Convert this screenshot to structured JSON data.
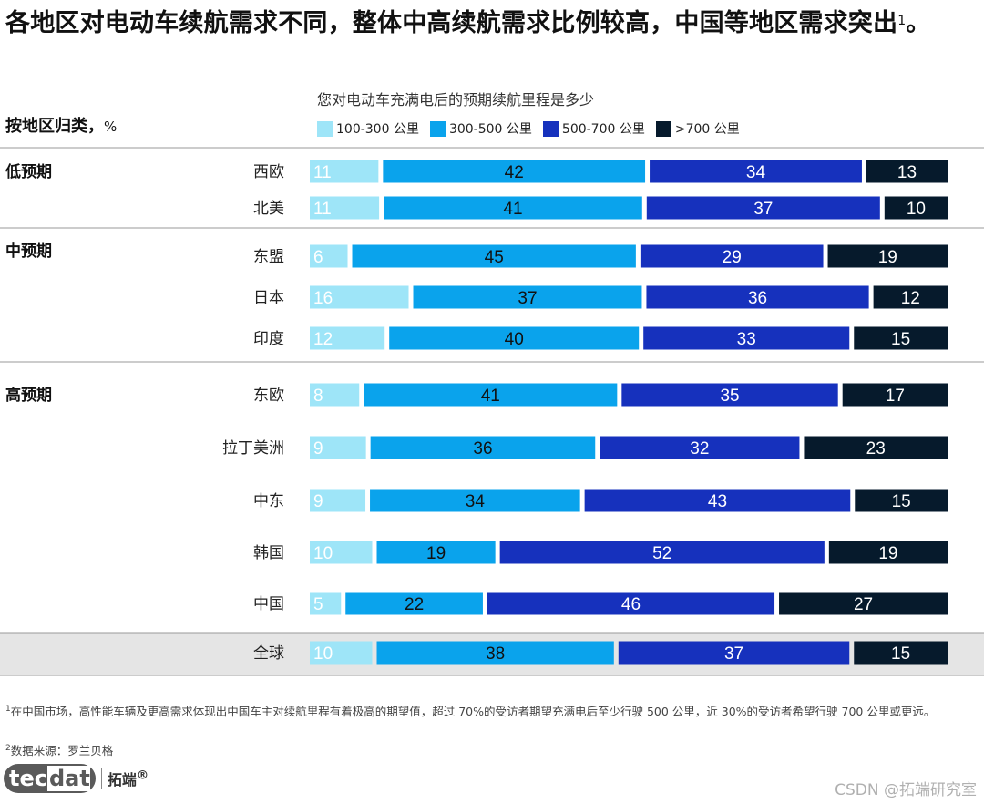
{
  "title": "各地区对电动车续航需求不同，整体中高续航需求比例较高，中国等地区需求突出",
  "title_sup": "1",
  "title_end": "。",
  "subtitle": "按地区归类，",
  "subtitle_unit": "%",
  "question": "您对电动车充满电后的预期续航里程是多少",
  "footnote1_sup": "1",
  "footnote1": "在中国市场，高性能车辆及更高需求体现出中国车主对续航里程有着极高的期望值，超过 70%的受访者期望充满电后至少行驶 500 公里，近 30%的受访者希望行驶 700 公里或更远。",
  "footnote2_sup": "2",
  "footnote2": "数据来源：罗兰贝格",
  "brand": {
    "logo_a": "tec",
    "logo_b": "dat",
    "name_cn": "拓端",
    "reg": "®"
  },
  "watermark": "CSDN @拓端研究室",
  "colors": [
    "#9ee5f8",
    "#0aa3ec",
    "#1631bd",
    "#061a2c"
  ],
  "chart_data": {
    "type": "bar",
    "orientation": "horizontal",
    "stacked": true,
    "legend_position": "top",
    "series": [
      {
        "name": "100-300 公里",
        "color": "#9ee5f8"
      },
      {
        "name": "300-500 公里",
        "color": "#0aa3ec"
      },
      {
        "name": "500-700 公里",
        "color": "#1631bd"
      },
      {
        "name": ">700 公里",
        "color": "#061a2c"
      }
    ],
    "groups": [
      {
        "label": "低预期",
        "rows": [
          {
            "region": "西欧",
            "values": [
              11,
              42,
              34,
              13
            ]
          },
          {
            "region": "北美",
            "values": [
              11,
              41,
              37,
              10
            ]
          }
        ]
      },
      {
        "label": "中预期",
        "rows": [
          {
            "region": "东盟",
            "values": [
              6,
              45,
              29,
              19
            ]
          },
          {
            "region": "日本",
            "values": [
              16,
              37,
              36,
              12
            ]
          },
          {
            "region": "印度",
            "values": [
              12,
              40,
              33,
              15
            ]
          }
        ]
      },
      {
        "label": "高预期",
        "rows": [
          {
            "region": "东欧",
            "values": [
              8,
              41,
              35,
              17
            ]
          },
          {
            "region": "拉丁美洲",
            "values": [
              9,
              36,
              32,
              23
            ]
          },
          {
            "region": "中东",
            "values": [
              9,
              34,
              43,
              15
            ]
          },
          {
            "region": "韩国",
            "values": [
              10,
              19,
              52,
              19
            ]
          },
          {
            "region": "中国",
            "values": [
              5,
              22,
              46,
              27
            ]
          }
        ]
      },
      {
        "label": "",
        "rows": [
          {
            "region": "全球",
            "values": [
              10,
              38,
              37,
              15
            ]
          }
        ]
      }
    ]
  }
}
